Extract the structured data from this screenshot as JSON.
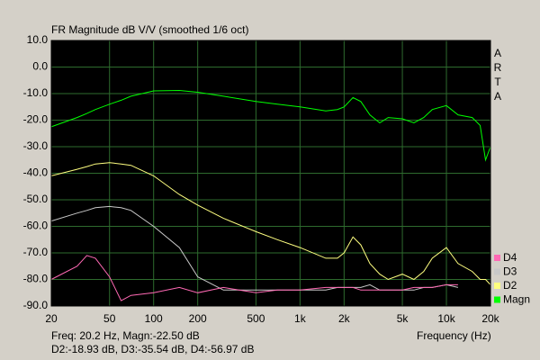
{
  "chart_data": {
    "type": "line",
    "title": "FR Magnitude dB V/V (smoothed 1/6 oct)",
    "brand": "ARTA",
    "x_label": "Frequency (Hz)",
    "status": [
      "Freq: 20.2 Hz, Magn:-22.50 dB",
      "D2:-18.93 dB, D3:-35.54 dB, D4:-56.97 dB"
    ],
    "log_x": true,
    "grid": true,
    "xlim": [
      20,
      20000
    ],
    "xticks": [
      20,
      50,
      100,
      200,
      500,
      {
        "value": 1000,
        "label": "1k"
      },
      {
        "value": 2000,
        "label": "2k"
      },
      {
        "value": 5000,
        "label": "5k"
      },
      {
        "value": 10000,
        "label": "10k"
      },
      {
        "value": 20000,
        "label": "20k"
      }
    ],
    "ylim": [
      -90,
      10
    ],
    "yticks": [
      {
        "value": 10,
        "label": "10.0"
      },
      {
        "value": 0,
        "label": "0.0"
      },
      {
        "value": -10,
        "label": "-10.0"
      },
      {
        "value": -20,
        "label": "-20.0"
      },
      {
        "value": -30,
        "label": "-30.0"
      },
      {
        "value": -40,
        "label": "-40.0"
      },
      {
        "value": -50,
        "label": "-50.0"
      },
      {
        "value": -60,
        "label": "-60.0"
      },
      {
        "value": -70,
        "label": "-70.0"
      },
      {
        "value": -80,
        "label": "-80.0"
      },
      {
        "value": -90,
        "label": "-90.0"
      }
    ],
    "x": [
      20,
      30,
      35,
      40,
      50,
      60,
      70,
      100,
      150,
      200,
      300,
      500,
      700,
      1000,
      1500,
      1800,
      2000,
      2300,
      2600,
      3000,
      3500,
      4000,
      5000,
      6000,
      7000,
      8000,
      10000,
      12000,
      15000,
      17000,
      18500,
      20000
    ],
    "series": [
      {
        "name": "Magn",
        "color": "#00ff00",
        "values": [
          -22.5,
          -19,
          -17.5,
          -16,
          -14,
          -12.5,
          -11,
          -9,
          -8.8,
          -9.5,
          -11,
          -13,
          -14,
          -15,
          -16.5,
          -16,
          -15,
          -11.5,
          -13,
          -18,
          -21,
          -19,
          -19.5,
          -21,
          -19,
          -16,
          -14.5,
          -18,
          -19,
          -22,
          -35,
          -30
        ]
      },
      {
        "name": "D2",
        "color": "#ffff80",
        "values": [
          -41,
          -38.5,
          -37.5,
          -36.5,
          -36,
          -36.5,
          -37,
          -41,
          -48,
          -52,
          -57,
          -62,
          -65,
          -68,
          -72,
          -72,
          -70,
          -64,
          -67,
          -74,
          -78,
          -80,
          -78,
          -80,
          -77,
          -72,
          -68,
          -74,
          -77,
          -80,
          -80,
          -82
        ]
      },
      {
        "name": "D3",
        "color": "#c8c8c8",
        "values": [
          -58,
          -55,
          -54,
          -53,
          -52.5,
          -53,
          -54,
          -60,
          -68,
          -79,
          -84,
          -84,
          -84,
          -84,
          -84,
          -83,
          -83,
          -83,
          -83,
          -82,
          -84,
          -84,
          -84,
          -84,
          -83,
          -83,
          -82,
          -83,
          null,
          null,
          null,
          null
        ]
      },
      {
        "name": "D4",
        "color": "#ff69b4",
        "values": [
          -80,
          -75,
          -71,
          -72,
          -79,
          -88,
          -86,
          -85,
          -83,
          -85,
          -83,
          -85,
          -84,
          -84,
          -83,
          -83,
          -83,
          -83,
          -84,
          -84,
          -84,
          -84,
          -84,
          -83,
          -83,
          -83,
          -82,
          -82,
          null,
          null,
          null,
          null
        ]
      }
    ]
  }
}
